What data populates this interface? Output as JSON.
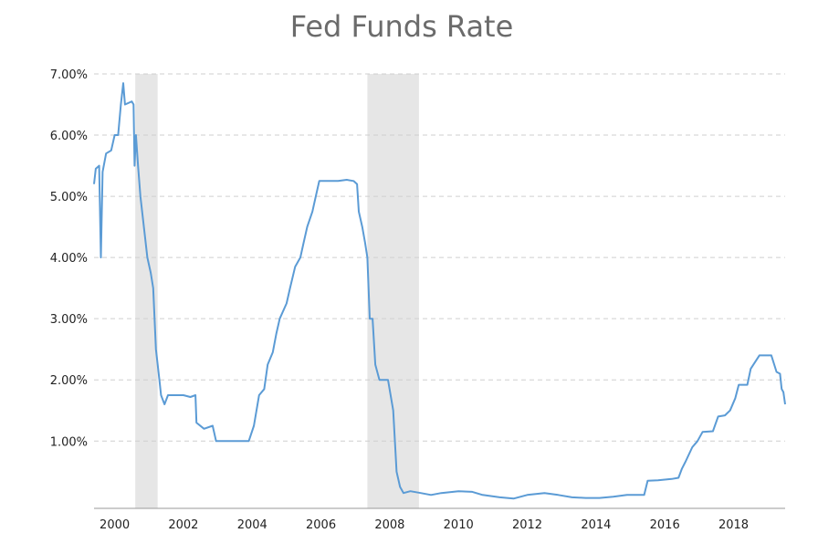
{
  "chart_data": {
    "type": "line",
    "title": "Fed Funds Rate",
    "xlabel": "",
    "ylabel": "",
    "xlim": [
      1999.4,
      2019.5
    ],
    "ylim": [
      -0.1,
      7.0
    ],
    "x_ticks": [
      2000,
      2002,
      2004,
      2006,
      2008,
      2010,
      2012,
      2014,
      2016,
      2018
    ],
    "x_tick_labels": [
      "2000",
      "2002",
      "2004",
      "2006",
      "2008",
      "2010",
      "2012",
      "2014",
      "2016",
      "2018"
    ],
    "y_ticks": [
      1,
      2,
      3,
      4,
      5,
      6,
      7
    ],
    "y_tick_labels": [
      "1.00%",
      "2.00%",
      "3.00%",
      "4.00%",
      "5.00%",
      "6.00%",
      "7.00%"
    ],
    "grid": true,
    "legend": "none",
    "recessions": [
      {
        "start": 2000.6,
        "end": 2001.25
      },
      {
        "start": 2007.35,
        "end": 2008.85
      }
    ],
    "series": [
      {
        "color": "#5b9bd5",
        "points": [
          [
            1999.4,
            5.2
          ],
          [
            1999.45,
            5.45
          ],
          [
            1999.55,
            5.5
          ],
          [
            1999.6,
            4.0
          ],
          [
            1999.65,
            5.4
          ],
          [
            1999.75,
            5.7
          ],
          [
            1999.9,
            5.75
          ],
          [
            2000.0,
            6.0
          ],
          [
            2000.1,
            6.0
          ],
          [
            2000.18,
            6.5
          ],
          [
            2000.25,
            6.85
          ],
          [
            2000.3,
            6.5
          ],
          [
            2000.5,
            6.55
          ],
          [
            2000.55,
            6.5
          ],
          [
            2000.58,
            5.5
          ],
          [
            2000.62,
            6.0
          ],
          [
            2000.68,
            5.5
          ],
          [
            2000.75,
            5.0
          ],
          [
            2000.85,
            4.5
          ],
          [
            2000.95,
            4.0
          ],
          [
            2001.05,
            3.75
          ],
          [
            2001.12,
            3.5
          ],
          [
            2001.2,
            2.5
          ],
          [
            2001.3,
            2.0
          ],
          [
            2001.35,
            1.75
          ],
          [
            2001.45,
            1.6
          ],
          [
            2001.55,
            1.75
          ],
          [
            2002.0,
            1.75
          ],
          [
            2002.2,
            1.72
          ],
          [
            2002.35,
            1.75
          ],
          [
            2002.38,
            1.3
          ],
          [
            2002.6,
            1.2
          ],
          [
            2002.85,
            1.25
          ],
          [
            2002.95,
            1.0
          ],
          [
            2003.5,
            1.0
          ],
          [
            2003.9,
            1.0
          ],
          [
            2004.05,
            1.25
          ],
          [
            2004.2,
            1.75
          ],
          [
            2004.35,
            1.85
          ],
          [
            2004.45,
            2.25
          ],
          [
            2004.6,
            2.45
          ],
          [
            2004.7,
            2.75
          ],
          [
            2004.8,
            3.0
          ],
          [
            2005.0,
            3.25
          ],
          [
            2005.1,
            3.5
          ],
          [
            2005.25,
            3.85
          ],
          [
            2005.4,
            4.0
          ],
          [
            2005.5,
            4.25
          ],
          [
            2005.6,
            4.5
          ],
          [
            2005.75,
            4.75
          ],
          [
            2005.85,
            5.0
          ],
          [
            2005.95,
            5.25
          ],
          [
            2006.2,
            5.25
          ],
          [
            2006.5,
            5.25
          ],
          [
            2006.75,
            5.27
          ],
          [
            2006.95,
            5.25
          ],
          [
            2007.05,
            5.2
          ],
          [
            2007.1,
            4.75
          ],
          [
            2007.2,
            4.5
          ],
          [
            2007.28,
            4.25
          ],
          [
            2007.35,
            4.0
          ],
          [
            2007.42,
            3.0
          ],
          [
            2007.5,
            3.0
          ],
          [
            2007.58,
            2.25
          ],
          [
            2007.7,
            2.0
          ],
          [
            2007.85,
            2.0
          ],
          [
            2007.95,
            2.0
          ],
          [
            2008.1,
            1.5
          ],
          [
            2008.2,
            0.5
          ],
          [
            2008.3,
            0.25
          ],
          [
            2008.4,
            0.15
          ],
          [
            2008.6,
            0.18
          ],
          [
            2008.9,
            0.15
          ],
          [
            2009.2,
            0.12
          ],
          [
            2009.5,
            0.15
          ],
          [
            2010.0,
            0.18
          ],
          [
            2010.4,
            0.17
          ],
          [
            2010.7,
            0.12
          ],
          [
            2011.2,
            0.08
          ],
          [
            2011.6,
            0.06
          ],
          [
            2012.0,
            0.12
          ],
          [
            2012.5,
            0.15
          ],
          [
            2012.9,
            0.12
          ],
          [
            2013.3,
            0.08
          ],
          [
            2013.7,
            0.07
          ],
          [
            2014.1,
            0.07
          ],
          [
            2014.5,
            0.09
          ],
          [
            2014.9,
            0.12
          ],
          [
            2015.2,
            0.12
          ],
          [
            2015.4,
            0.12
          ],
          [
            2015.5,
            0.35
          ],
          [
            2015.8,
            0.36
          ],
          [
            2016.2,
            0.38
          ],
          [
            2016.4,
            0.4
          ],
          [
            2016.5,
            0.55
          ],
          [
            2016.6,
            0.66
          ],
          [
            2016.8,
            0.9
          ],
          [
            2016.95,
            1.0
          ],
          [
            2017.1,
            1.15
          ],
          [
            2017.4,
            1.16
          ],
          [
            2017.55,
            1.4
          ],
          [
            2017.75,
            1.42
          ],
          [
            2017.9,
            1.5
          ],
          [
            2018.05,
            1.7
          ],
          [
            2018.15,
            1.92
          ],
          [
            2018.4,
            1.92
          ],
          [
            2018.5,
            2.18
          ],
          [
            2018.75,
            2.4
          ],
          [
            2018.9,
            2.4
          ],
          [
            2019.1,
            2.4
          ],
          [
            2019.25,
            2.13
          ],
          [
            2019.35,
            2.1
          ],
          [
            2019.4,
            1.85
          ],
          [
            2019.45,
            1.8
          ],
          [
            2019.5,
            1.6
          ]
        ]
      }
    ]
  }
}
